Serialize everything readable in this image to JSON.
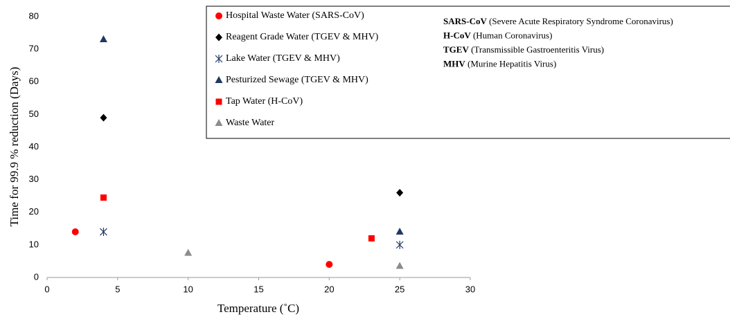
{
  "chart_data": {
    "type": "scatter",
    "x_label": "Temperature (˚C)",
    "y_label": "Time for 99.9 % reduction (Days)",
    "xlim": [
      0,
      30
    ],
    "xticks": [
      0,
      5,
      10,
      15,
      20,
      25,
      30
    ],
    "ylim": [
      0,
      80
    ],
    "yticks": [
      0,
      10,
      20,
      30,
      40,
      50,
      60,
      70,
      80
    ],
    "grid": false,
    "series": [
      {
        "name": "Hospital Waste Water (SARS-CoV)",
        "color": "#ff0000",
        "marker": "circle",
        "x": [
          2,
          20
        ],
        "values": [
          14,
          4
        ]
      },
      {
        "name": "Reagent Grade Water (TGEV & MHV)",
        "color": "#000000",
        "marker": "diamond",
        "x": [
          4,
          25
        ],
        "values": [
          49,
          26
        ]
      },
      {
        "name": "Lake Water (TGEV & MHV)",
        "color": "#1f3864",
        "marker": "asterisk",
        "x": [
          4,
          25
        ],
        "values": [
          14,
          10
        ]
      },
      {
        "name": "Pesturized Sewage (TGEV & MHV)",
        "color": "#1f3864",
        "marker": "triangle",
        "x": [
          4,
          25
        ],
        "values": [
          73,
          14
        ]
      },
      {
        "name": "Tap Water (H-CoV)",
        "color": "#ff0000",
        "marker": "square",
        "x": [
          4,
          23
        ],
        "values": [
          24.5,
          12
        ]
      },
      {
        "name": "Waste Water",
        "color": "#8c8c8c",
        "marker": "triangle",
        "x": [
          10,
          25
        ],
        "values": [
          7.5,
          3.5
        ]
      }
    ],
    "notes": [
      {
        "abbr": "SARS-CoV",
        "text": " (Severe Acute Respiratory Syndrome Coronavirus)"
      },
      {
        "abbr": "H-CoV",
        "text": " (Human Coronavirus)"
      },
      {
        "abbr": "TGEV",
        "text": " (Transmissible  Gastroenteritis Virus)"
      },
      {
        "abbr": "MHV",
        "text": " (Murine Hepatitis Virus)"
      }
    ]
  }
}
